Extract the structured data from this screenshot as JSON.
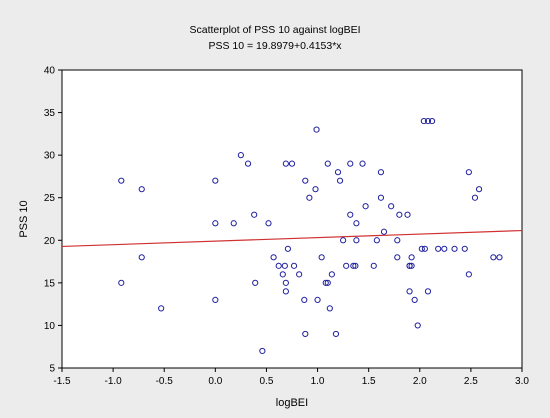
{
  "chart_data": {
    "type": "scatter",
    "title": "Scatterplot of PSS 10 against logBEI",
    "subtitle": "PSS 10 = 19.8979+0.4153*x",
    "xlabel": "logBEI",
    "ylabel": "PSS 10",
    "xlim": [
      -1.5,
      3.0
    ],
    "ylim": [
      5,
      40
    ],
    "xticks": [
      "-1.5",
      "-1.0",
      "-0.5",
      "0.0",
      "0.5",
      "1.0",
      "1.5",
      "2.0",
      "2.5",
      "3.0"
    ],
    "yticks": [
      "5",
      "10",
      "15",
      "20",
      "25",
      "30",
      "35",
      "40"
    ],
    "grid": false,
    "marker_color": "#2020a0",
    "line_color": "#d03030",
    "regression": {
      "intercept": 19.8979,
      "slope": 0.4153
    },
    "points": [
      [
        -0.92,
        27
      ],
      [
        -0.92,
        15
      ],
      [
        -0.72,
        26
      ],
      [
        -0.72,
        18
      ],
      [
        -0.53,
        12
      ],
      [
        0.0,
        27
      ],
      [
        0.0,
        22
      ],
      [
        0.0,
        13
      ],
      [
        0.18,
        22
      ],
      [
        0.25,
        30
      ],
      [
        0.32,
        29
      ],
      [
        0.38,
        23
      ],
      [
        0.39,
        15
      ],
      [
        0.46,
        7
      ],
      [
        0.52,
        22
      ],
      [
        0.57,
        18
      ],
      [
        0.62,
        17
      ],
      [
        0.66,
        16
      ],
      [
        0.68,
        17
      ],
      [
        0.69,
        15
      ],
      [
        0.69,
        14
      ],
      [
        0.69,
        29
      ],
      [
        0.71,
        19
      ],
      [
        0.75,
        29
      ],
      [
        0.77,
        17
      ],
      [
        0.82,
        16
      ],
      [
        0.87,
        13
      ],
      [
        0.88,
        9
      ],
      [
        0.88,
        27
      ],
      [
        0.92,
        25
      ],
      [
        0.98,
        26
      ],
      [
        0.99,
        33
      ],
      [
        1.0,
        13
      ],
      [
        1.04,
        18
      ],
      [
        1.08,
        15
      ],
      [
        1.1,
        15
      ],
      [
        1.1,
        29
      ],
      [
        1.12,
        12
      ],
      [
        1.14,
        16
      ],
      [
        1.18,
        9
      ],
      [
        1.2,
        28
      ],
      [
        1.22,
        27
      ],
      [
        1.25,
        20
      ],
      [
        1.28,
        17
      ],
      [
        1.32,
        29
      ],
      [
        1.32,
        23
      ],
      [
        1.35,
        17
      ],
      [
        1.37,
        17
      ],
      [
        1.38,
        22
      ],
      [
        1.38,
        20
      ],
      [
        1.44,
        29
      ],
      [
        1.47,
        24
      ],
      [
        1.55,
        17
      ],
      [
        1.58,
        20
      ],
      [
        1.62,
        28
      ],
      [
        1.62,
        25
      ],
      [
        1.65,
        21
      ],
      [
        1.72,
        24
      ],
      [
        1.78,
        20
      ],
      [
        1.8,
        23
      ],
      [
        1.88,
        23
      ],
      [
        1.9,
        14
      ],
      [
        1.9,
        17
      ],
      [
        1.9,
        17
      ],
      [
        1.92,
        18
      ],
      [
        1.92,
        17
      ],
      [
        1.95,
        13
      ],
      [
        1.98,
        10
      ],
      [
        2.02,
        19
      ],
      [
        2.04,
        34
      ],
      [
        2.05,
        19
      ],
      [
        2.08,
        14
      ],
      [
        2.12,
        34
      ],
      [
        2.18,
        19
      ],
      [
        2.24,
        19
      ],
      [
        2.34,
        19
      ],
      [
        2.44,
        19
      ],
      [
        2.48,
        16
      ],
      [
        2.48,
        28
      ],
      [
        2.54,
        25
      ],
      [
        2.58,
        26
      ],
      [
        2.72,
        18
      ],
      [
        2.78,
        18
      ],
      [
        2.08,
        34
      ],
      [
        1.78,
        18
      ]
    ]
  }
}
